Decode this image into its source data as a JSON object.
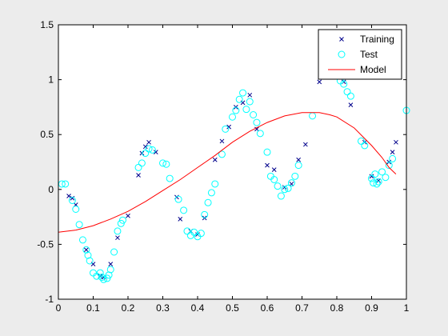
{
  "chart_data": {
    "type": "scatter",
    "title": "",
    "xlabel": "",
    "ylabel": "",
    "xlim": [
      0,
      1
    ],
    "ylim": [
      -1,
      1.5
    ],
    "xticks": [
      "0",
      "0.1",
      "0.2",
      "0.3",
      "0.4",
      "0.5",
      "0.6",
      "0.7",
      "0.8",
      "0.9",
      "1"
    ],
    "yticks": [
      "-1",
      "-0.5",
      "0",
      "0.5",
      "1",
      "1.5"
    ],
    "grid": false,
    "legend_position": "top-right",
    "series": [
      {
        "name": "Training",
        "marker": "x",
        "color": "#00008b",
        "x": [
          0.03,
          0.04,
          0.05,
          0.08,
          0.1,
          0.12,
          0.13,
          0.15,
          0.17,
          0.2,
          0.23,
          0.24,
          0.25,
          0.26,
          0.28,
          0.34,
          0.35,
          0.38,
          0.4,
          0.42,
          0.45,
          0.47,
          0.49,
          0.51,
          0.53,
          0.55,
          0.57,
          0.6,
          0.62,
          0.65,
          0.67,
          0.69,
          0.71,
          0.75,
          0.77,
          0.82,
          0.84,
          0.88,
          0.9,
          0.92,
          0.95,
          0.96,
          0.97
        ],
        "y": [
          -0.06,
          -0.08,
          -0.14,
          -0.55,
          -0.68,
          -0.79,
          -0.8,
          -0.68,
          -0.44,
          -0.24,
          0.13,
          0.33,
          0.39,
          0.43,
          0.34,
          -0.07,
          -0.27,
          -0.38,
          -0.41,
          -0.26,
          0.27,
          0.44,
          0.57,
          0.75,
          0.79,
          0.86,
          0.55,
          0.22,
          0.18,
          0.02,
          0.05,
          0.27,
          0.41,
          0.98,
          1.03,
          0.98,
          0.77,
          0.43,
          0.12,
          0.08,
          0.25,
          0.34,
          0.43
        ]
      },
      {
        "name": "Test",
        "marker": "o",
        "color": "#00ffff",
        "x": [
          0.01,
          0.02,
          0.04,
          0.05,
          0.06,
          0.07,
          0.08,
          0.085,
          0.09,
          0.1,
          0.11,
          0.12,
          0.125,
          0.13,
          0.14,
          0.145,
          0.15,
          0.16,
          0.17,
          0.18,
          0.185,
          0.23,
          0.24,
          0.25,
          0.26,
          0.27,
          0.3,
          0.31,
          0.32,
          0.345,
          0.36,
          0.37,
          0.38,
          0.39,
          0.4,
          0.41,
          0.42,
          0.43,
          0.44,
          0.45,
          0.47,
          0.48,
          0.5,
          0.51,
          0.52,
          0.53,
          0.54,
          0.55,
          0.56,
          0.57,
          0.58,
          0.6,
          0.61,
          0.62,
          0.63,
          0.64,
          0.65,
          0.66,
          0.67,
          0.68,
          0.69,
          0.73,
          0.8,
          0.81,
          0.82,
          0.83,
          0.84,
          0.87,
          0.88,
          0.9,
          0.905,
          0.91,
          0.915,
          0.92,
          0.93,
          0.94,
          0.95,
          0.96,
          1.0
        ],
        "y": [
          0.05,
          0.05,
          -0.1,
          -0.18,
          -0.32,
          -0.46,
          -0.55,
          -0.6,
          -0.65,
          -0.76,
          -0.79,
          -0.76,
          -0.8,
          -0.82,
          -0.81,
          -0.78,
          -0.73,
          -0.57,
          -0.38,
          -0.31,
          -0.28,
          0.2,
          0.24,
          0.33,
          0.37,
          0.36,
          0.24,
          0.23,
          0.1,
          -0.09,
          -0.19,
          -0.38,
          -0.42,
          -0.39,
          -0.43,
          -0.4,
          -0.23,
          -0.12,
          -0.03,
          0.05,
          0.32,
          0.55,
          0.66,
          0.72,
          0.82,
          0.88,
          0.73,
          0.8,
          0.68,
          0.61,
          0.51,
          0.34,
          0.12,
          0.09,
          0.03,
          -0.06,
          0.0,
          0.01,
          0.06,
          0.12,
          0.22,
          0.67,
          1.05,
          0.99,
          0.96,
          0.89,
          0.85,
          0.44,
          0.4,
          0.1,
          0.06,
          0.14,
          0.05,
          0.07,
          0.16,
          0.11,
          0.22,
          0.28,
          0.72
        ]
      },
      {
        "name": "Model",
        "marker": "line",
        "color": "#ff0000",
        "x": [
          0.0,
          0.05,
          0.1,
          0.15,
          0.2,
          0.25,
          0.3,
          0.35,
          0.4,
          0.45,
          0.5,
          0.55,
          0.6,
          0.65,
          0.7,
          0.72,
          0.75,
          0.78,
          0.8,
          0.85,
          0.9,
          0.93,
          0.95,
          0.97
        ],
        "y": [
          -0.39,
          -0.37,
          -0.33,
          -0.27,
          -0.2,
          -0.11,
          -0.01,
          0.09,
          0.2,
          0.31,
          0.43,
          0.53,
          0.61,
          0.67,
          0.7,
          0.7,
          0.7,
          0.68,
          0.66,
          0.56,
          0.4,
          0.29,
          0.2,
          0.14
        ]
      }
    ]
  }
}
